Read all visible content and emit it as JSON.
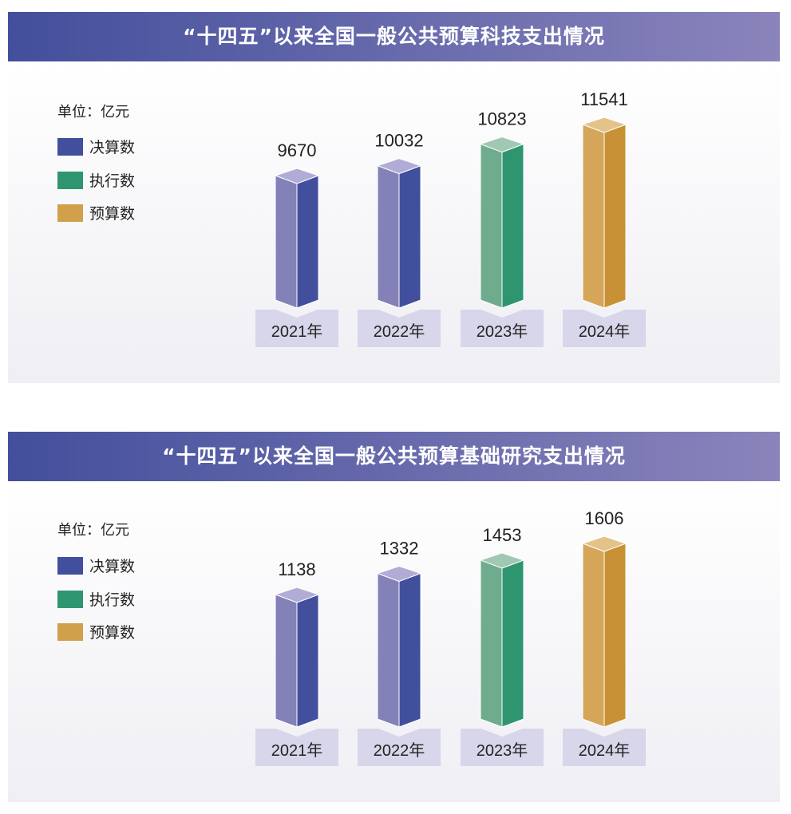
{
  "chart_data": [
    {
      "type": "bar",
      "title": "“十四五”以来全国一般公共预算科技支出情况",
      "unit": "单位：亿元",
      "categories": [
        "2021年",
        "2022年",
        "2023年",
        "2024年"
      ],
      "values": [
        9670,
        10032,
        10823,
        11541
      ],
      "value_labels": [
        "9670",
        "10032",
        "10823",
        "11541"
      ],
      "series_type": [
        "决算数",
        "决算数",
        "执行数",
        "预算数"
      ],
      "legend": [
        "决算数",
        "执行数",
        "预算数"
      ],
      "legend_placement": "left"
    },
    {
      "type": "bar",
      "title": "“十四五”以来全国一般公共预算基础研究支出情况",
      "unit": "单位：亿元",
      "categories": [
        "2021年",
        "2022年",
        "2023年",
        "2024年"
      ],
      "values": [
        1138,
        1332,
        1453,
        1606
      ],
      "value_labels": [
        "1138",
        "1332",
        "1453",
        "1606"
      ],
      "series_type": [
        "决算数",
        "决算数",
        "执行数",
        "预算数"
      ],
      "legend": [
        "决算数",
        "执行数",
        "预算数"
      ],
      "legend_placement": "left"
    }
  ],
  "colors": {
    "决算数": {
      "light": "#8480b8",
      "dark": "#414f9c",
      "top": "#b0acd6"
    },
    "执行数": {
      "light": "#6fab8d",
      "dark": "#2e9570",
      "top": "#a0c8b2"
    },
    "预算数": {
      "light": "#d5a65a",
      "dark": "#c99135",
      "top": "#e3c38a"
    },
    "label_box": "#d8d6ea",
    "title_start": "#434f9c",
    "title_end": "#8a84bb"
  }
}
